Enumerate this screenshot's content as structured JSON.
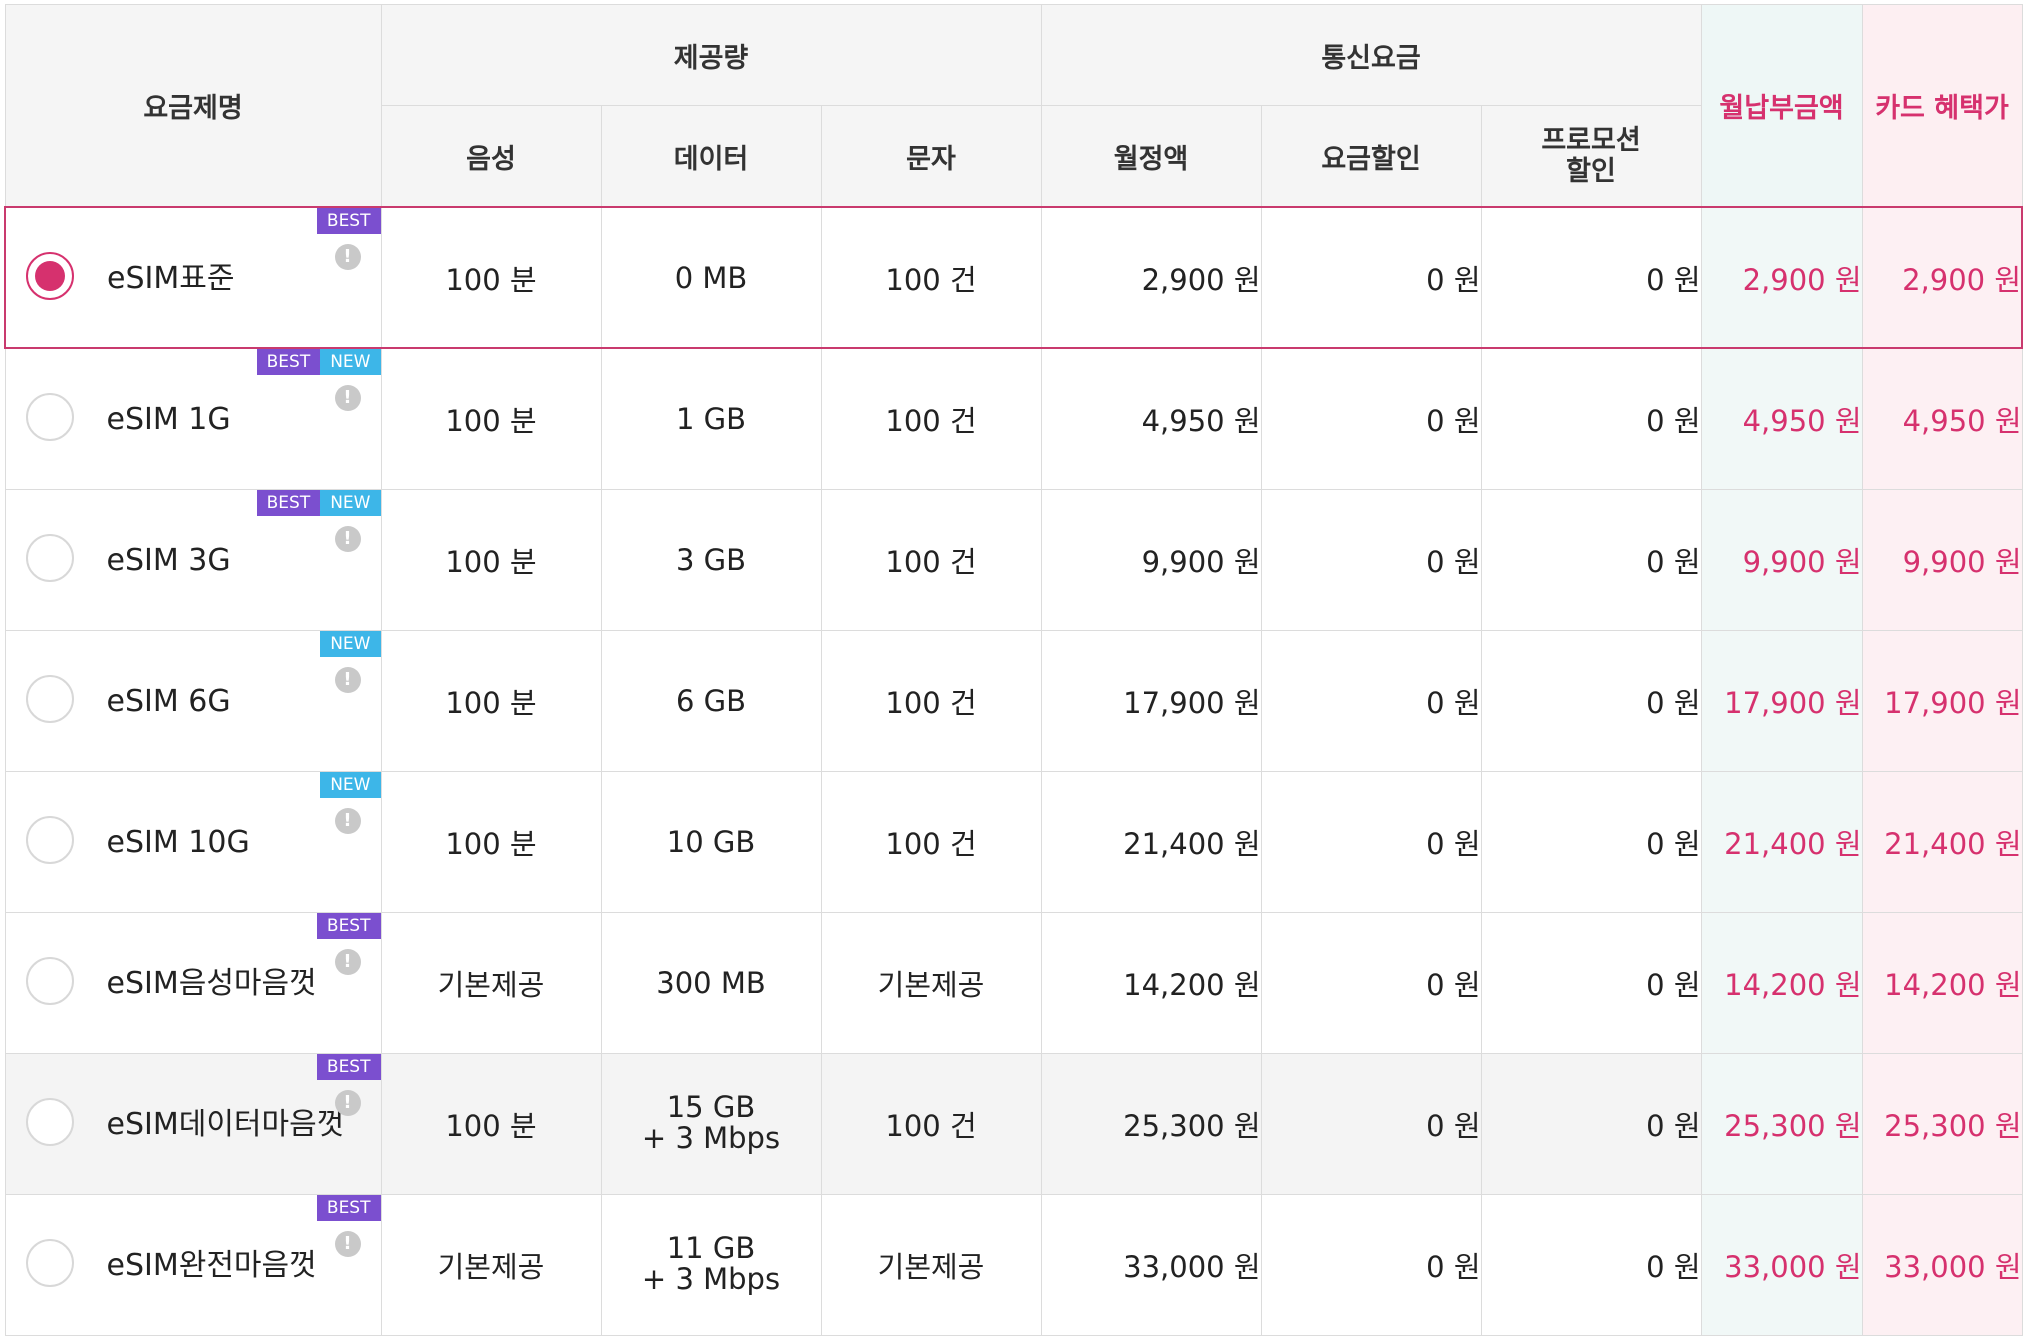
{
  "headers": {
    "plan_name": "요금제명",
    "provided": "제공량",
    "voice": "음성",
    "data": "데이터",
    "sms": "문자",
    "fees": "통신요금",
    "monthly": "월정액",
    "discount": "요금할인",
    "promo_line1": "프로모션",
    "promo_line2": "할인",
    "total": "월납부금액",
    "card": "카드 혜택가"
  },
  "badges": {
    "best": "BEST",
    "new": "NEW",
    "info": "!"
  },
  "colors": {
    "accent": "#d6316e",
    "best_badge": "#7b4fcf",
    "new_badge": "#3db6e8"
  },
  "plans": [
    {
      "name": "eSIM표준",
      "selected": true,
      "best": true,
      "new": false,
      "voice": "100 분",
      "data": "0 MB",
      "data2": "",
      "sms": "100 건",
      "monthly": "2,900 원",
      "discount": "0 원",
      "promo": "0 원",
      "total": "2,900 원",
      "card": "2,900 원"
    },
    {
      "name": "eSIM 1G",
      "selected": false,
      "best": true,
      "new": true,
      "voice": "100 분",
      "data": "1 GB",
      "data2": "",
      "sms": "100 건",
      "monthly": "4,950 원",
      "discount": "0 원",
      "promo": "0 원",
      "total": "4,950 원",
      "card": "4,950 원"
    },
    {
      "name": "eSIM 3G",
      "selected": false,
      "best": true,
      "new": true,
      "voice": "100 분",
      "data": "3 GB",
      "data2": "",
      "sms": "100 건",
      "monthly": "9,900 원",
      "discount": "0 원",
      "promo": "0 원",
      "total": "9,900 원",
      "card": "9,900 원"
    },
    {
      "name": "eSIM 6G",
      "selected": false,
      "best": false,
      "new": true,
      "voice": "100 분",
      "data": "6 GB",
      "data2": "",
      "sms": "100 건",
      "monthly": "17,900 원",
      "discount": "0 원",
      "promo": "0 원",
      "total": "17,900 원",
      "card": "17,900 원"
    },
    {
      "name": "eSIM 10G",
      "selected": false,
      "best": false,
      "new": true,
      "voice": "100 분",
      "data": "10 GB",
      "data2": "",
      "sms": "100 건",
      "monthly": "21,400 원",
      "discount": "0 원",
      "promo": "0 원",
      "total": "21,400 원",
      "card": "21,400 원"
    },
    {
      "name": "eSIM음성마음껏",
      "selected": false,
      "best": true,
      "new": false,
      "voice": "기본제공",
      "data": "300 MB",
      "data2": "",
      "sms": "기본제공",
      "monthly": "14,200 원",
      "discount": "0 원",
      "promo": "0 원",
      "total": "14,200 원",
      "card": "14,200 원"
    },
    {
      "name": "eSIM데이터마음껏",
      "selected": false,
      "best": true,
      "new": false,
      "voice": "100 분",
      "data": "15 GB",
      "data2": "+ 3 Mbps",
      "sms": "100 건",
      "monthly": "25,300 원",
      "discount": "0 원",
      "promo": "0 원",
      "total": "25,300 원",
      "card": "25,300 원"
    },
    {
      "name": "eSIM완전마음껏",
      "selected": false,
      "best": true,
      "new": false,
      "voice": "기본제공",
      "data": "11 GB",
      "data2": "+ 3 Mbps",
      "sms": "기본제공",
      "monthly": "33,000 원",
      "discount": "0 원",
      "promo": "0 원",
      "total": "33,000 원",
      "card": "33,000 원"
    }
  ]
}
